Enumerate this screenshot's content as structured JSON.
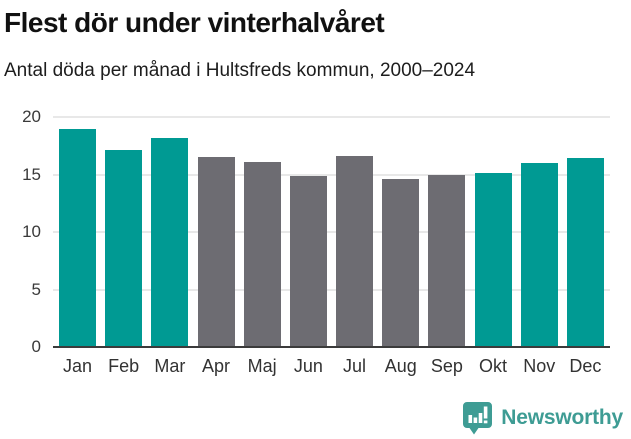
{
  "title": "Flest dör under vinterhalvåret",
  "subtitle": "Antal döda per månad i Hultsfreds kommun, 2000–2024",
  "footer": {
    "brand": "Newsworthy",
    "logo_icon": "speech-bubble-bar-chart-exclamation"
  },
  "colors": {
    "highlight": "#009a93",
    "muted": "#6d6c72",
    "gridline": "#e8e8e8",
    "axis_line": "#3b3b3b",
    "title_text": "#111111",
    "tick_text": "#3a3a3a",
    "brand": "#3e9c94"
  },
  "chart_data": {
    "type": "bar",
    "categories": [
      "Jan",
      "Feb",
      "Mar",
      "Apr",
      "Maj",
      "Jun",
      "Jul",
      "Aug",
      "Sep",
      "Okt",
      "Nov",
      "Dec"
    ],
    "values": [
      19.0,
      17.1,
      18.2,
      16.5,
      16.1,
      14.9,
      16.6,
      14.6,
      15.0,
      15.1,
      16.0,
      16.4
    ],
    "highlighted": [
      true,
      true,
      true,
      false,
      false,
      false,
      false,
      false,
      false,
      true,
      true,
      true
    ],
    "title": "Flest dör under vinterhalvåret",
    "subtitle": "Antal döda per månad i Hultsfreds kommun, 2000–2024",
    "xlabel": "",
    "ylabel": "",
    "ylim": [
      0,
      20
    ],
    "yticks": [
      0,
      5,
      10,
      15,
      20
    ],
    "grid": true,
    "legend": false,
    "highlight_meaning": "winter half-year months (Okt–Mar) in teal, summer months (Apr–Sep) in gray"
  }
}
